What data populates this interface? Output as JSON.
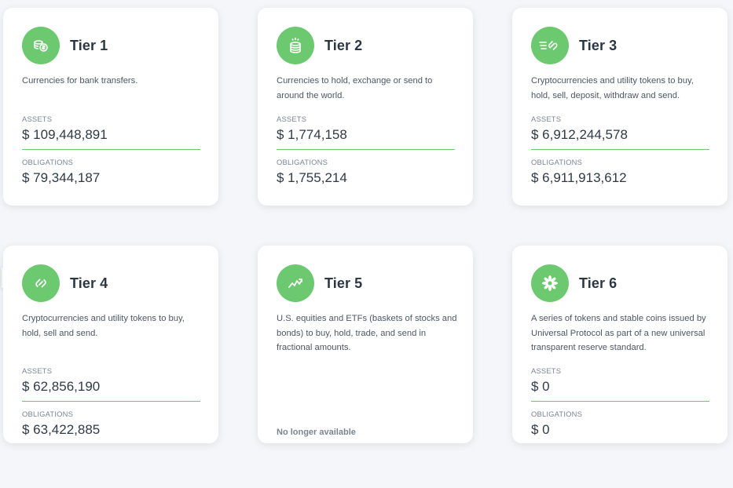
{
  "labels": {
    "assets": "ASSETS",
    "obligations": "OBLIGATIONS"
  },
  "colors": {
    "accent": "#6cc96f",
    "background": "#f4f6f9",
    "side_tab_icon": "#2f6fd8"
  },
  "side_tab": {
    "icon": "bar-chart-icon"
  },
  "tiers": [
    {
      "title": "Tier 1",
      "icon": "coins-dollar-icon",
      "description": "Currencies for bank transfers.",
      "assets": "$ 109,448,891",
      "obligations": "$ 79,344,187"
    },
    {
      "title": "Tier 2",
      "icon": "coin-stack-sparkle-icon",
      "description": "Currencies to hold, exchange or send to around the world.",
      "assets": "$ 1,774,158",
      "obligations": "$ 1,755,214"
    },
    {
      "title": "Tier 3",
      "icon": "fast-link-icon",
      "description": "Cryptocurrencies and utility tokens to buy, hold, sell, deposit, withdraw and send.",
      "assets": "$ 6,912,244,578",
      "obligations": "$ 6,911,913,612"
    },
    {
      "title": "Tier 4",
      "icon": "chain-link-icon",
      "description": "Cryptocurrencies and utility tokens to buy, hold, sell and send.",
      "assets": "$ 62,856,190",
      "obligations": "$ 63,422,885"
    },
    {
      "title": "Tier 5",
      "icon": "trend-chart-icon",
      "description": "U.S. equities and ETFs (baskets of stocks and bonds) to buy, hold, trade, and send in fractional amounts.",
      "status": "No longer available"
    },
    {
      "title": "Tier 6",
      "icon": "flower-burst-icon",
      "description": "A series of tokens and stable coins issued by Universal Protocol as part of a new universal transparent reserve standard.",
      "assets": "$ 0",
      "obligations": "$ 0"
    }
  ]
}
